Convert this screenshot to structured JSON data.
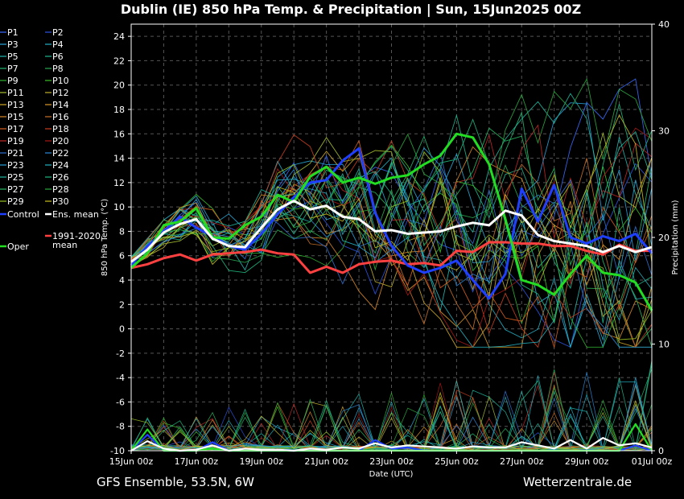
{
  "title": "Dublin  (IE)  850 hPa Temp. & Precipitation | Sun, 15Jun2025 00Z",
  "footer_left": "GFS Ensemble, 53.5N, 6W",
  "footer_right": "Wetterzentrale.de",
  "chart_data": {
    "type": "line",
    "title": "Dublin  (IE)  850 hPa Temp. & Precipitation | Sun, 15Jun2025 00Z",
    "xlabel": "Date (UTC)",
    "ylabel": "850 hPa Temp. (°C)",
    "y2label": "Precipitation (mm)",
    "ylim": [
      -10,
      25
    ],
    "y2lim": [
      0,
      40
    ],
    "xlim": [
      0,
      16
    ],
    "x_tick_labels": [
      "15Jun 00z",
      "17Jun 00z",
      "19Jun 00z",
      "21Jun 00z",
      "23Jun 00z",
      "25Jun 00z",
      "27Jun 00z",
      "29Jun 00z",
      "01Jul 00z"
    ],
    "y_ticks": [
      -10,
      -8,
      -6,
      -4,
      -2,
      0,
      2,
      4,
      6,
      8,
      10,
      12,
      14,
      16,
      18,
      20,
      22,
      24
    ],
    "y2_ticks": [
      0,
      10,
      20,
      30,
      40
    ],
    "grid": true,
    "legend_position": "left",
    "legend": [
      {
        "name": "P1",
        "color": "#3b6cff"
      },
      {
        "name": "P2",
        "color": "#2f55e0"
      },
      {
        "name": "P3",
        "color": "#2aa8d8"
      },
      {
        "name": "P4",
        "color": "#24b0c8"
      },
      {
        "name": "P5",
        "color": "#20b8b0"
      },
      {
        "name": "P6",
        "color": "#1fb890"
      },
      {
        "name": "P7",
        "color": "#22b870"
      },
      {
        "name": "P8",
        "color": "#2aa850"
      },
      {
        "name": "P9",
        "color": "#30b030"
      },
      {
        "name": "P10",
        "color": "#3cc028"
      },
      {
        "name": "P11",
        "color": "#a8c030"
      },
      {
        "name": "P12",
        "color": "#c0b030"
      },
      {
        "name": "P13",
        "color": "#d0a828"
      },
      {
        "name": "P14",
        "color": "#d89a28"
      },
      {
        "name": "P15",
        "color": "#d88828"
      },
      {
        "name": "P16",
        "color": "#c87028"
      },
      {
        "name": "P17",
        "color": "#d86020"
      },
      {
        "name": "P18",
        "color": "#c84020"
      },
      {
        "name": "P19",
        "color": "#c02828"
      },
      {
        "name": "P20",
        "color": "#a81818"
      },
      {
        "name": "P21",
        "color": "#3070d0"
      },
      {
        "name": "P22",
        "color": "#2c88d8"
      },
      {
        "name": "P23",
        "color": "#28a0d8"
      },
      {
        "name": "P24",
        "color": "#24b0c0"
      },
      {
        "name": "P25",
        "color": "#22b8a0"
      },
      {
        "name": "P26",
        "color": "#20b880"
      },
      {
        "name": "P27",
        "color": "#28b860"
      },
      {
        "name": "P28",
        "color": "#2ca840"
      },
      {
        "name": "P29",
        "color": "#98c020"
      },
      {
        "name": "P30",
        "color": "#c8c020"
      },
      {
        "name": "Control",
        "color": "#1f3fff"
      },
      {
        "name": "Ens. mean",
        "color": "#ffffff"
      },
      {
        "name": "Oper",
        "color": "#22dd22"
      },
      {
        "name": "1991-2020\nmean",
        "color": "#ff4040"
      }
    ],
    "control_temp": {
      "x": [
        0,
        0.5,
        1,
        1.5,
        2,
        2.5,
        3,
        3.5,
        4,
        4.5,
        5,
        5.5,
        6,
        6.5,
        7,
        7.5,
        8,
        8.5,
        9,
        9.5,
        10,
        10.5,
        11,
        11.5,
        12,
        12.5,
        13,
        13.5,
        14,
        14.5,
        15,
        15.5,
        16
      ],
      "y": [
        5.2,
        6.8,
        8.0,
        9.2,
        8.3,
        7.6,
        6.8,
        6.5,
        7.8,
        9.4,
        10.8,
        12.0,
        12.2,
        13.8,
        14.8,
        9.5,
        6.8,
        5.2,
        4.6,
        5.0,
        5.6,
        4.0,
        2.5,
        4.5,
        11.5,
        8.8,
        11.8,
        7.5,
        7.0,
        7.6,
        7.2,
        7.8,
        6.2
      ]
    },
    "ens_mean_temp": {
      "x": [
        0,
        0.5,
        1,
        1.5,
        2,
        2.5,
        3,
        3.5,
        4,
        4.5,
        5,
        5.5,
        6,
        6.5,
        7,
        7.5,
        8,
        8.5,
        9,
        9.5,
        10,
        10.5,
        11,
        11.5,
        12,
        12.5,
        13,
        13.5,
        14,
        14.5,
        15,
        15.5,
        16
      ],
      "y": [
        5.5,
        6.5,
        7.9,
        8.6,
        9.0,
        7.4,
        6.8,
        6.7,
        8.3,
        9.8,
        10.5,
        9.8,
        10.1,
        9.2,
        9.0,
        8.0,
        8.1,
        7.8,
        7.9,
        8.0,
        8.4,
        8.7,
        8.5,
        9.7,
        9.3,
        7.7,
        7.2,
        7.0,
        6.8,
        6.3,
        6.8,
        6.3,
        6.7
      ]
    },
    "oper_temp": {
      "x": [
        0,
        0.5,
        1,
        1.5,
        2,
        2.5,
        3,
        3.5,
        4,
        4.5,
        5,
        5.5,
        6,
        6.5,
        7,
        7.5,
        8,
        8.5,
        9,
        9.5,
        10,
        10.5,
        11,
        11.5,
        12,
        12.5,
        13,
        13.5,
        14,
        14.5,
        15,
        15.5,
        16
      ],
      "y": [
        5.0,
        6.2,
        8.5,
        8.8,
        9.9,
        7.5,
        7.4,
        8.5,
        9.2,
        11.0,
        10.4,
        12.5,
        13.3,
        12.0,
        12.4,
        11.9,
        12.4,
        12.6,
        13.5,
        14.2,
        16.0,
        15.7,
        13.5,
        9.0,
        4.0,
        3.6,
        2.8,
        4.5,
        6.0,
        4.6,
        4.4,
        3.8,
        1.5
      ]
    },
    "climate_mean_temp": {
      "x": [
        0,
        0.5,
        1,
        1.5,
        2,
        2.5,
        3,
        3.5,
        4,
        4.5,
        5,
        5.5,
        6,
        6.5,
        7,
        7.5,
        8,
        8.5,
        9,
        9.5,
        10,
        10.5,
        11,
        11.5,
        12,
        12.5,
        13,
        13.5,
        14,
        14.5,
        15,
        15.5,
        16
      ],
      "y": [
        5.0,
        5.3,
        5.8,
        6.1,
        5.6,
        6.1,
        6.2,
        6.3,
        6.5,
        6.2,
        6.1,
        4.6,
        5.1,
        4.6,
        5.3,
        5.5,
        5.6,
        5.3,
        5.4,
        5.2,
        6.4,
        6.3,
        7.1,
        7.1,
        7.0,
        7.0,
        6.8,
        6.8,
        6.4,
        6.1,
        6.9,
        6.4,
        6.4
      ]
    },
    "ens_mean_precip": {
      "x": [
        0,
        0.5,
        1,
        1.5,
        2,
        2.5,
        3,
        3.5,
        4,
        4.5,
        5,
        5.5,
        6,
        6.5,
        7,
        7.5,
        8,
        8.5,
        9,
        9.5,
        10,
        10.5,
        11,
        11.5,
        12,
        12.5,
        13,
        13.5,
        14,
        14.5,
        15,
        15.5,
        16
      ],
      "y": [
        0,
        0.9,
        0.2,
        0,
        0.1,
        0.5,
        0,
        0.2,
        0.1,
        0.1,
        0,
        0.2,
        0.1,
        0.3,
        0.2,
        0.7,
        0.3,
        0.5,
        0.4,
        0.3,
        0.2,
        0.4,
        0.3,
        0.3,
        0.8,
        0.5,
        0.2,
        1.0,
        0.2,
        1.2,
        0.5,
        0.7,
        0.3
      ]
    },
    "control_precip": {
      "x": [
        0,
        0.5,
        1,
        1.5,
        2,
        2.5,
        3,
        3.5,
        4,
        4.5,
        5,
        5.5,
        6,
        6.5,
        7,
        7.5,
        8,
        8.5,
        9,
        9.5,
        10,
        10.5,
        11,
        11.5,
        12,
        12.5,
        13,
        13.5,
        14,
        14.5,
        15,
        15.5,
        16
      ],
      "y": [
        0,
        1.5,
        0,
        0,
        0,
        0.8,
        0,
        0,
        0,
        0,
        0,
        0,
        0,
        0,
        0,
        1.0,
        0.2,
        0.3,
        0,
        0,
        0,
        0,
        0,
        0,
        0,
        0,
        0,
        0,
        0,
        0,
        0,
        0.5,
        0
      ]
    },
    "oper_precip": {
      "x": [
        0,
        0.5,
        1,
        1.5,
        2,
        2.5,
        3,
        3.5,
        4,
        4.5,
        5,
        5.5,
        6,
        6.5,
        7,
        7.5,
        8,
        8.5,
        9,
        9.5,
        10,
        10.5,
        11,
        11.5,
        12,
        12.5,
        13,
        13.5,
        14,
        14.5,
        15,
        15.5,
        16
      ],
      "y": [
        0,
        2.0,
        0,
        0,
        0,
        0.2,
        0,
        0,
        0,
        0,
        0,
        0,
        0,
        0,
        0,
        0,
        0,
        0,
        0,
        0,
        0,
        0,
        0,
        0,
        0,
        0,
        0,
        0,
        0,
        0,
        0,
        2.5,
        0
      ]
    }
  }
}
